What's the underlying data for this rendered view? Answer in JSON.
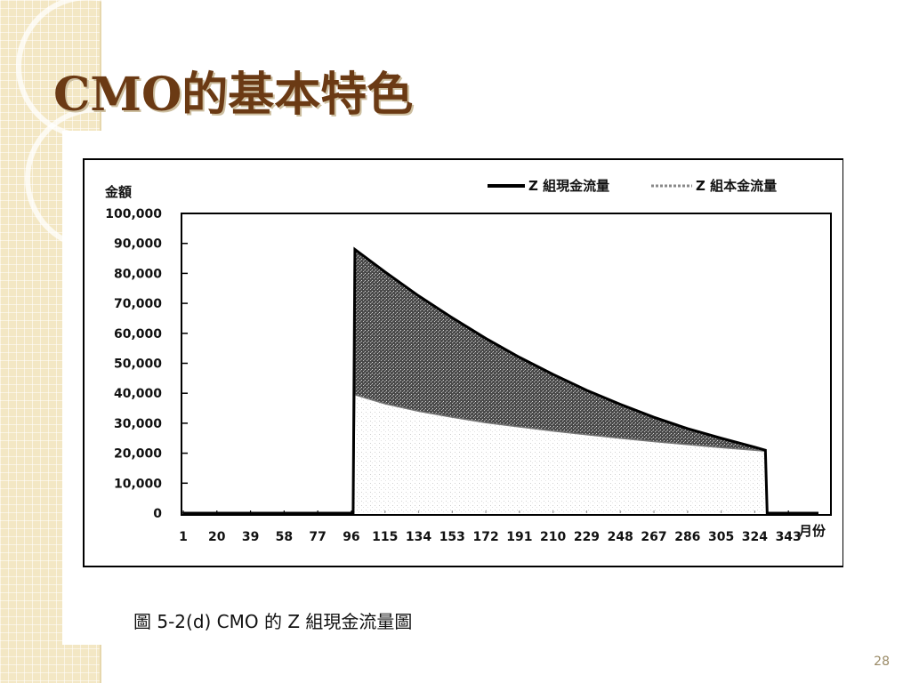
{
  "slide": {
    "title": "CMO的基本特色",
    "page_number": "28"
  },
  "chart_data": {
    "type": "area",
    "ylabel": "金額",
    "xlabel": "月份",
    "ylim": [
      0,
      100000
    ],
    "y_ticks": [
      "100,000",
      "90,000",
      "80,000",
      "70,000",
      "60,000",
      "50,000",
      "40,000",
      "30,000",
      "20,000",
      "10,000",
      "0"
    ],
    "x_ticks": [
      "1",
      "20",
      "39",
      "58",
      "77",
      "96",
      "115",
      "134",
      "153",
      "172",
      "191",
      "210",
      "229",
      "248",
      "267",
      "286",
      "305",
      "324",
      "343"
    ],
    "xlim": [
      1,
      360
    ],
    "series": [
      {
        "name": "Z 組現金流量",
        "x": [
          1,
          97,
          98,
          115,
          134,
          153,
          172,
          191,
          210,
          229,
          248,
          267,
          286,
          305,
          324,
          330,
          331,
          360
        ],
        "values": [
          0,
          0,
          88000,
          80500,
          72500,
          65200,
          58300,
          52000,
          46300,
          41000,
          36300,
          32000,
          28200,
          25000,
          22000,
          21000,
          0,
          0
        ]
      },
      {
        "name": "Z 組本金流量",
        "x": [
          1,
          97,
          98,
          115,
          134,
          153,
          172,
          191,
          210,
          229,
          248,
          267,
          286,
          305,
          324,
          330,
          331,
          360
        ],
        "values": [
          0,
          0,
          39500,
          36500,
          34000,
          32000,
          30200,
          28800,
          27400,
          26200,
          25000,
          23900,
          22900,
          21900,
          21000,
          20700,
          0,
          0
        ]
      }
    ],
    "legend_position": "top-right",
    "caption": "圖 5-2(d)   CMO 的 Z 組現金流量圖",
    "grid": false
  }
}
